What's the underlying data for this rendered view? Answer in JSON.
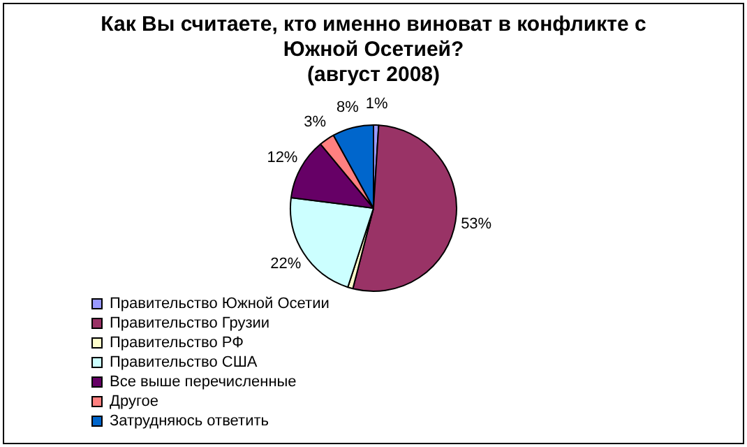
{
  "chart_data": {
    "type": "pie",
    "title": "Как Вы считаете, кто именно виноват в конфликте с Южной Осетией?",
    "subtitle": "(август 2008)",
    "categories": [
      "Правительство Южной Осетии",
      "Правительство Грузии",
      "Правительство РФ",
      "Правительство США",
      "Все выше перечисленные",
      "Другое",
      "Затрудняюсь ответить"
    ],
    "values": [
      1,
      53,
      1,
      22,
      12,
      3,
      8
    ],
    "colors": [
      "#9999ff",
      "#993366",
      "#ffffcc",
      "#ccffff",
      "#660066",
      "#ff8080",
      "#0066cc"
    ],
    "value_labels": [
      "1%",
      "53%",
      null,
      "22%",
      "12%",
      "3%",
      "8%"
    ],
    "legend": "bottom"
  }
}
